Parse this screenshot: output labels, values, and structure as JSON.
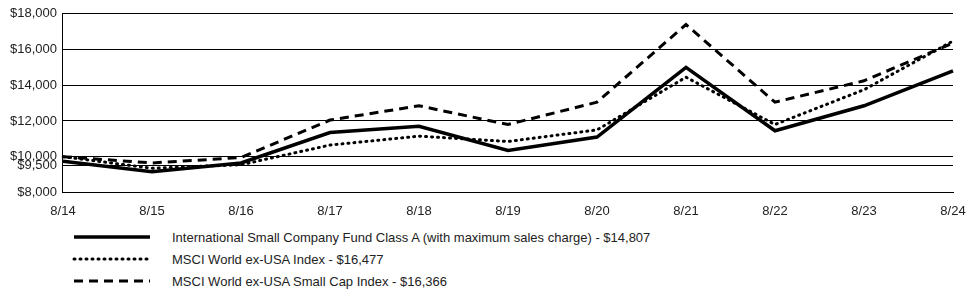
{
  "chart_data": {
    "type": "line",
    "categories": [
      "8/14",
      "8/15",
      "8/16",
      "8/17",
      "8/18",
      "8/19",
      "8/20",
      "8/21",
      "8/22",
      "8/23",
      "8/24"
    ],
    "series": [
      {
        "name": "International Small Company Fund Class A (with maximum sales charge)  - $14,807",
        "color": "#000000",
        "line_style": "solid",
        "values": [
          9750,
          9150,
          9650,
          11350,
          11700,
          10350,
          11100,
          15000,
          11450,
          12850,
          14807
        ]
      },
      {
        "name": "MSCI World ex-USA Index - $16,477",
        "color": "#000000",
        "line_style": "dotted",
        "values": [
          10000,
          9350,
          9550,
          10650,
          11150,
          10850,
          11500,
          14450,
          11800,
          13750,
          16477
        ]
      },
      {
        "name": "MSCI World ex-USA Small Cap Index - $16,366",
        "color": "#000000",
        "line_style": "dashed",
        "values": [
          10000,
          9650,
          9950,
          12050,
          12850,
          11800,
          13050,
          17400,
          13050,
          14250,
          16366
        ]
      }
    ],
    "ylim": [
      8000,
      18000
    ],
    "yticks": [
      {
        "value": 8000,
        "label": "$8,000"
      },
      {
        "value": 9500,
        "label": "$9,500"
      },
      {
        "value": 10000,
        "label": "$10,000"
      },
      {
        "value": 12000,
        "label": "$12,000"
      },
      {
        "value": 14000,
        "label": "$14,000"
      },
      {
        "value": 16000,
        "label": "$16,000"
      },
      {
        "value": 18000,
        "label": "$18,000"
      }
    ],
    "grid": true,
    "legend": "bottom"
  }
}
